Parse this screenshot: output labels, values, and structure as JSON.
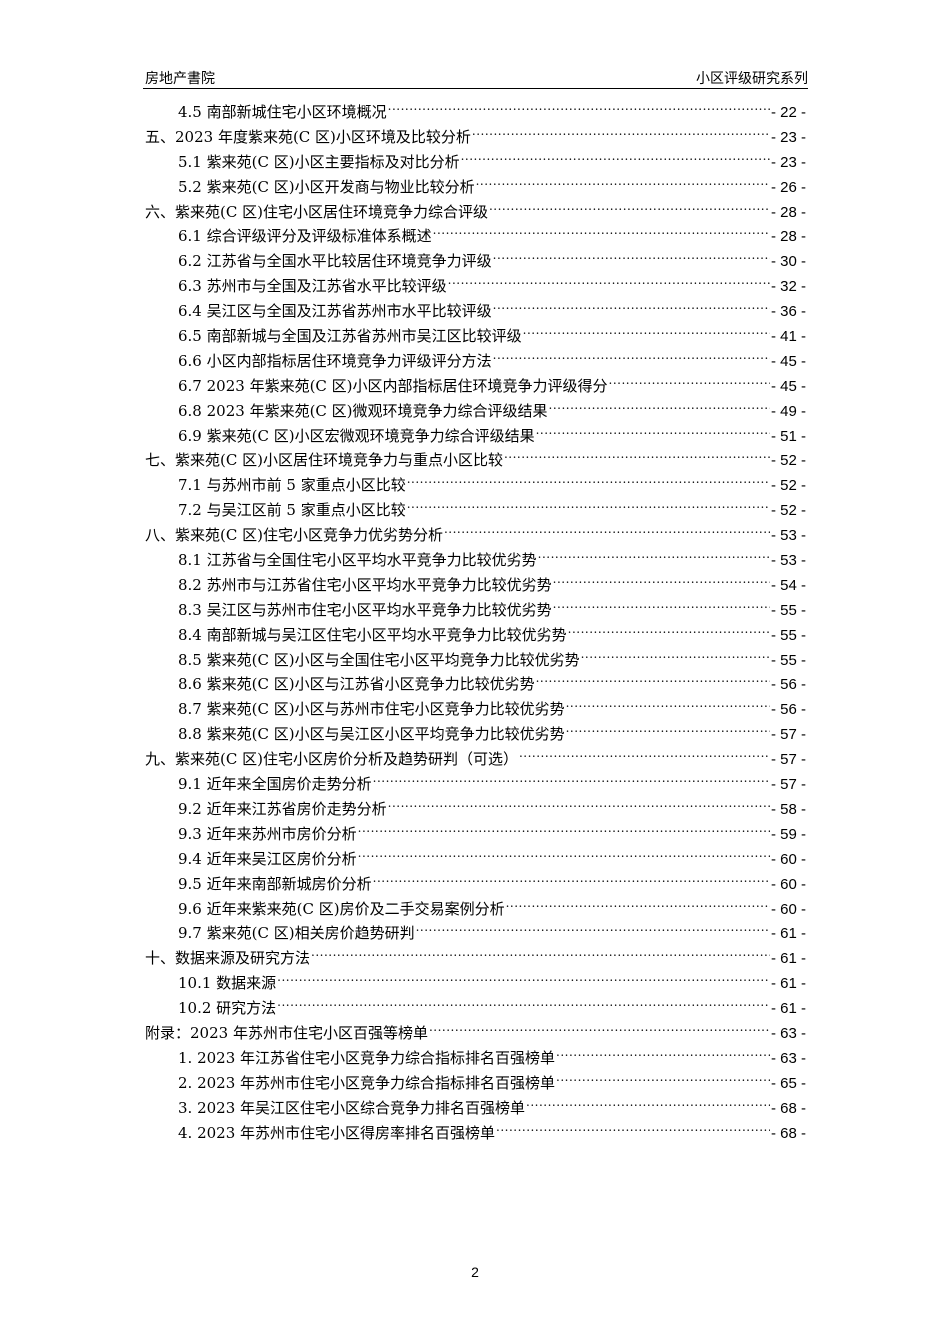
{
  "header": {
    "left": "房地产書院",
    "right": "小区评级研究系列"
  },
  "toc": [
    {
      "level": 2,
      "title": "4.5 南部新城住宅小区环境概况",
      "page": "- 22 -"
    },
    {
      "level": 1,
      "title": "五、2023 年度紫来苑(C 区)小区环境及比较分析",
      "page": "- 23 -"
    },
    {
      "level": 2,
      "title": "5.1 紫来苑(C 区)小区主要指标及对比分析",
      "page": "- 23 -"
    },
    {
      "level": 2,
      "title": "5.2 紫来苑(C 区)小区开发商与物业比较分析",
      "page": "- 26 -"
    },
    {
      "level": 1,
      "title": "六、紫来苑(C 区)住宅小区居住环境竞争力综合评级",
      "page": "- 28 -"
    },
    {
      "level": 2,
      "title": "6.1 综合评级评分及评级标准体系概述",
      "page": "- 28 -"
    },
    {
      "level": 2,
      "title": "6.2 江苏省与全国水平比较居住环境竞争力评级",
      "page": "- 30 -"
    },
    {
      "level": 2,
      "title": "6.3 苏州市与全国及江苏省水平比较评级",
      "page": "- 32 -"
    },
    {
      "level": 2,
      "title": "6.4 吴江区与全国及江苏省苏州市水平比较评级",
      "page": "- 36 -"
    },
    {
      "level": 2,
      "title": "6.5 南部新城与全国及江苏省苏州市吴江区比较评级",
      "page": "- 41 -"
    },
    {
      "level": 2,
      "title": "6.6 小区内部指标居住环境竞争力评级评分方法",
      "page": "- 45 -"
    },
    {
      "level": 2,
      "title": "6.7 2023 年紫来苑(C 区)小区内部指标居住环境竞争力评级得分",
      "page": "- 45 -"
    },
    {
      "level": 2,
      "title": "6.8 2023 年紫来苑(C 区)微观环境竞争力综合评级结果",
      "page": "- 49 -"
    },
    {
      "level": 2,
      "title": "6.9 紫来苑(C 区)小区宏微观环境竞争力综合评级结果",
      "page": "- 51 -"
    },
    {
      "level": 1,
      "title": "七、紫来苑(C 区)小区居住环境竞争力与重点小区比较",
      "page": "- 52 -"
    },
    {
      "level": 2,
      "title": "7.1 与苏州市前 5 家重点小区比较",
      "page": "- 52 -"
    },
    {
      "level": 2,
      "title": "7.2 与吴江区前 5 家重点小区比较",
      "page": "- 52 -"
    },
    {
      "level": 1,
      "title": "八、紫来苑(C 区)住宅小区竞争力优劣势分析",
      "page": "- 53 -"
    },
    {
      "level": 2,
      "title": "8.1 江苏省与全国住宅小区平均水平竞争力比较优劣势",
      "page": "- 53 -"
    },
    {
      "level": 2,
      "title": "8.2 苏州市与江苏省住宅小区平均水平竞争力比较优劣势",
      "page": "- 54 -"
    },
    {
      "level": 2,
      "title": "8.3 吴江区与苏州市住宅小区平均水平竞争力比较优劣势",
      "page": "- 55 -"
    },
    {
      "level": 2,
      "title": "8.4 南部新城与吴江区住宅小区平均水平竞争力比较优劣势",
      "page": "- 55 -"
    },
    {
      "level": 2,
      "title": "8.5 紫来苑(C 区)小区与全国住宅小区平均竞争力比较优劣势",
      "page": "- 55 -"
    },
    {
      "level": 2,
      "title": "8.6 紫来苑(C 区)小区与江苏省小区竞争力比较优劣势",
      "page": "- 56 -"
    },
    {
      "level": 2,
      "title": "8.7 紫来苑(C 区)小区与苏州市住宅小区竞争力比较优劣势",
      "page": "- 56 -"
    },
    {
      "level": 2,
      "title": "8.8 紫来苑(C 区)小区与吴江区小区平均竞争力比较优劣势",
      "page": "- 57 -"
    },
    {
      "level": 1,
      "title": "九、紫来苑(C 区)住宅小区房价分析及趋势研判（可选）",
      "page": "- 57 -"
    },
    {
      "level": 2,
      "title": "9.1 近年来全国房价走势分析",
      "page": "- 57 -"
    },
    {
      "level": 2,
      "title": "9.2 近年来江苏省房价走势分析",
      "page": "- 58 -"
    },
    {
      "level": 2,
      "title": "9.3 近年来苏州市房价分析",
      "page": "- 59 -"
    },
    {
      "level": 2,
      "title": "9.4 近年来吴江区房价分析",
      "page": "- 60 -"
    },
    {
      "level": 2,
      "title": "9.5 近年来南部新城房价分析",
      "page": "- 60 -"
    },
    {
      "level": 2,
      "title": "9.6 近年来紫来苑(C 区)房价及二手交易案例分析",
      "page": "- 60 -"
    },
    {
      "level": 2,
      "title": "9.7 紫来苑(C 区)相关房价趋势研判",
      "page": "- 61 -"
    },
    {
      "level": 1,
      "title": "十、数据来源及研究方法",
      "page": "- 61 -"
    },
    {
      "level": 2,
      "title": "10.1 数据来源",
      "page": "- 61 -"
    },
    {
      "level": 2,
      "title": "10.2 研究方法",
      "page": "- 61 -"
    },
    {
      "level": 1,
      "title": "附录：2023 年苏州市住宅小区百强等榜单",
      "page": "- 63 -"
    },
    {
      "level": 2,
      "title": "1. 2023 年江苏省住宅小区竞争力综合指标排名百强榜单",
      "page": "- 63 -"
    },
    {
      "level": 2,
      "title": "2. 2023 年苏州市住宅小区竞争力综合指标排名百强榜单",
      "page": "- 65 -"
    },
    {
      "level": 2,
      "title": "3. 2023 年吴江区住宅小区综合竞争力排名百强榜单",
      "page": "- 68 -"
    },
    {
      "level": 2,
      "title": "4. 2023 年苏州市住宅小区得房率排名百强榜单",
      "page": "- 68 -"
    }
  ],
  "footer": {
    "page_number": "2"
  }
}
